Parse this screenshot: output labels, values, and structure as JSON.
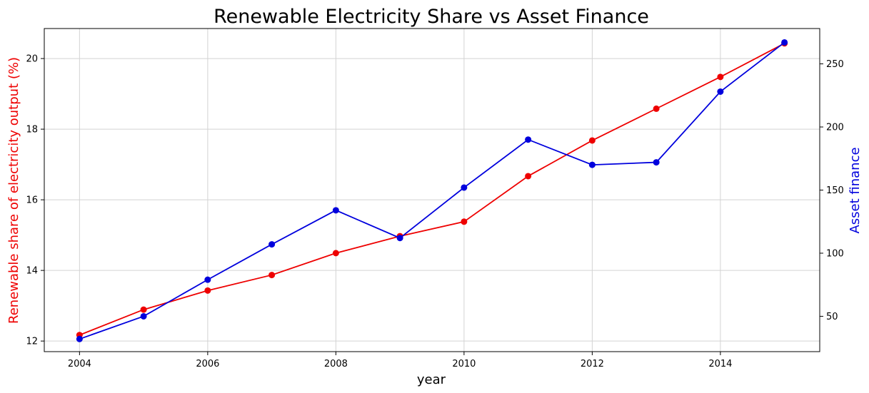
{
  "chart_data": {
    "type": "line",
    "title": "Renewable Electricity Share vs Asset Finance",
    "xlabel": "year",
    "ylabel_left": "Renewable share of electricity output (%)",
    "ylabel_right": "Asset finance",
    "x": [
      2004,
      2005,
      2006,
      2007,
      2008,
      2009,
      2010,
      2011,
      2012,
      2013,
      2014,
      2015
    ],
    "x_ticks": [
      "2004",
      "2006",
      "2008",
      "2010",
      "2012",
      "2014"
    ],
    "xlim": [
      2003.45,
      2015.55
    ],
    "ylim_left": [
      11.7,
      20.85
    ],
    "ylim_right": [
      22,
      278
    ],
    "yticks_left": [
      "12",
      "14",
      "16",
      "18",
      "20"
    ],
    "yticks_right": [
      "50",
      "100",
      "150",
      "200",
      "250"
    ],
    "grid": true,
    "series": [
      {
        "axis": "left",
        "color": "#ee0000",
        "values": [
          12.17,
          12.89,
          13.43,
          13.87,
          14.49,
          14.97,
          15.38,
          16.67,
          17.68,
          18.58,
          19.48,
          20.43
        ]
      },
      {
        "axis": "right",
        "color": "#0000dd",
        "values": [
          32,
          50,
          79,
          107,
          134,
          112,
          152,
          190,
          170,
          172,
          228,
          267
        ]
      }
    ]
  }
}
